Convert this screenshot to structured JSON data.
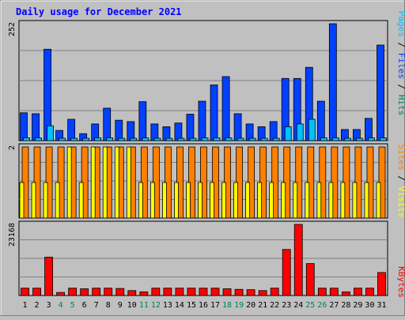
{
  "chart_data": [
    {
      "type": "bar",
      "title": "Daily usage for December 2021",
      "panel": "hits-files-pages",
      "categories": [
        "1",
        "2",
        "3",
        "4",
        "5",
        "6",
        "7",
        "8",
        "9",
        "10",
        "11",
        "12",
        "13",
        "14",
        "15",
        "16",
        "17",
        "18",
        "19",
        "20",
        "21",
        "22",
        "23",
        "24",
        "25",
        "26",
        "27",
        "28",
        "29",
        "30",
        "31"
      ],
      "weekend_days": [
        "4",
        "5",
        "11",
        "12",
        "18",
        "19",
        "25",
        "26"
      ],
      "ymax_label": "252",
      "ylim": [
        0,
        252
      ],
      "side_labels": [
        "Pages",
        "Files",
        "Hits"
      ],
      "series": [
        {
          "name": "Hits",
          "color": "#00805c",
          "values": [
            60,
            58,
            197,
            22,
            46,
            15,
            36,
            70,
            44,
            41,
            84,
            36,
            30,
            38,
            57,
            85,
            120,
            138,
            58,
            36,
            30,
            41,
            134,
            134,
            158,
            85,
            252,
            24,
            24,
            48,
            206
          ]
        },
        {
          "name": "Files",
          "color": "#0040ff",
          "values": [
            60,
            58,
            197,
            22,
            46,
            15,
            36,
            70,
            44,
            41,
            84,
            36,
            30,
            38,
            57,
            85,
            120,
            138,
            58,
            36,
            30,
            41,
            134,
            134,
            158,
            85,
            252,
            24,
            24,
            48,
            206
          ]
        },
        {
          "name": "Pages",
          "color": "#00c0ff",
          "values": [
            6,
            6,
            32,
            4,
            4,
            3,
            6,
            6,
            4,
            4,
            6,
            4,
            4,
            4,
            4,
            6,
            6,
            6,
            4,
            4,
            4,
            4,
            30,
            36,
            46,
            6,
            6,
            4,
            4,
            6,
            6
          ]
        }
      ]
    },
    {
      "type": "bar",
      "panel": "visits-sites",
      "ymax_label": "2",
      "ylim": [
        0,
        2
      ],
      "side_labels": [
        "Sites",
        "Visits"
      ],
      "series": [
        {
          "name": "Visits",
          "color": "#ffff00",
          "values": [
            1,
            1,
            1,
            1,
            2,
            1,
            2,
            2,
            2,
            2,
            1,
            1,
            1,
            1,
            1,
            1,
            1,
            1,
            1,
            1,
            1,
            1,
            1,
            1,
            1,
            1,
            1,
            1,
            1,
            1,
            1
          ]
        },
        {
          "name": "Sites",
          "color": "#ff8000",
          "values": [
            2,
            2,
            2,
            2,
            2,
            2,
            2,
            2,
            2,
            2,
            2,
            2,
            2,
            2,
            2,
            2,
            2,
            2,
            2,
            2,
            2,
            2,
            2,
            2,
            2,
            2,
            2,
            2,
            2,
            2,
            2
          ]
        }
      ]
    },
    {
      "type": "bar",
      "panel": "kbytes",
      "ymax_label": "23168",
      "ylim": [
        0,
        23168
      ],
      "side_labels": [
        "KBytes"
      ],
      "series": [
        {
          "name": "KBytes",
          "color": "#ff0000",
          "values": [
            2400,
            2400,
            12500,
            1000,
            2400,
            2200,
            2400,
            2400,
            2300,
            1600,
            1200,
            2400,
            2400,
            2400,
            2400,
            2400,
            2400,
            2200,
            2000,
            1900,
            1600,
            2400,
            15000,
            23168,
            10400,
            2400,
            2400,
            1200,
            2400,
            2400,
            7500
          ]
        }
      ]
    }
  ]
}
